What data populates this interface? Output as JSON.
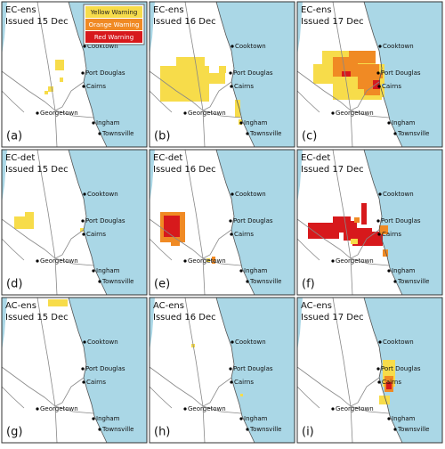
{
  "legend": [
    "Yellow Warning",
    "Orange Warning",
    "Red Warning"
  ],
  "cities": [
    "Cooktown",
    "Port Douglas",
    "Cairns",
    "Georgetown",
    "Ingham",
    "Townsville"
  ],
  "panels": [
    {
      "model": "EC-ens",
      "issued": "Issued 15 Dec",
      "label": "(a)"
    },
    {
      "model": "EC-ens",
      "issued": "Issued 16 Dec",
      "label": "(b)"
    },
    {
      "model": "EC-ens",
      "issued": "Issued 17 Dec",
      "label": "(c)"
    },
    {
      "model": "EC-det",
      "issued": "Issued 15 Dec",
      "label": "(d)"
    },
    {
      "model": "EC-det",
      "issued": "Issued 16 Dec",
      "label": "(e)"
    },
    {
      "model": "EC-det",
      "issued": "Issued 17 Dec",
      "label": "(f)"
    },
    {
      "model": "AC-ens",
      "issued": "Issued 15 Dec",
      "label": "(g)"
    },
    {
      "model": "AC-ens",
      "issued": "Issued 16 Dec",
      "label": "(h)"
    },
    {
      "model": "AC-ens",
      "issued": "Issued 17 Dec",
      "label": "(i)"
    }
  ]
}
